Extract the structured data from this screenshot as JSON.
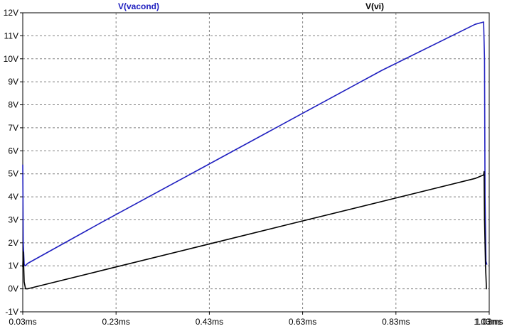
{
  "chart_data": {
    "type": "line",
    "title": "",
    "xlabel": "",
    "ylabel": "",
    "xlim": [
      0.03,
      1.03
    ],
    "ylim": [
      -1,
      12
    ],
    "grid": true,
    "legend_position": "top",
    "x_ticks": [
      "0.03ms",
      "0.23ms",
      "0.43ms",
      "0.63ms",
      "0.83ms",
      "1.03ms"
    ],
    "x_tick_values": [
      0.03,
      0.23,
      0.43,
      0.63,
      0.83,
      1.03
    ],
    "y_ticks": [
      "-1V",
      "0V",
      "1V",
      "2V",
      "3V",
      "4V",
      "5V",
      "6V",
      "7V",
      "8V",
      "9V",
      "10V",
      "11V",
      "12V"
    ],
    "y_tick_values": [
      -1,
      0,
      1,
      2,
      3,
      4,
      5,
      6,
      7,
      8,
      9,
      10,
      11,
      12
    ],
    "extra_x_tick_label": "1.03ms",
    "extra_x_tick_value": 1.03,
    "series": [
      {
        "name": "V(vacond)",
        "color": "#2020c0",
        "x": [
          0.03,
          0.031,
          0.033,
          0.036,
          0.04,
          0.2,
          0.4,
          0.6,
          0.8,
          1.0,
          1.018,
          1.02,
          1.021,
          1.023,
          1.025
        ],
        "y": [
          5.4,
          2.0,
          1.05,
          1.0,
          1.1,
          2.9,
          5.1,
          7.3,
          9.5,
          11.5,
          11.6,
          10.0,
          4.0,
          1.2,
          1.05
        ]
      },
      {
        "name": "V(vi)",
        "color": "#000000",
        "x": [
          0.03,
          0.031,
          0.033,
          0.036,
          0.04,
          0.2,
          0.4,
          0.6,
          0.8,
          1.0,
          1.018,
          1.019,
          1.02,
          1.022,
          1.024,
          1.025
        ],
        "y": [
          0.95,
          1.6,
          0.3,
          0.0,
          0.0,
          0.8,
          1.8,
          2.8,
          3.8,
          4.8,
          4.95,
          5.1,
          3.0,
          1.0,
          0.0,
          0.0
        ]
      }
    ]
  }
}
